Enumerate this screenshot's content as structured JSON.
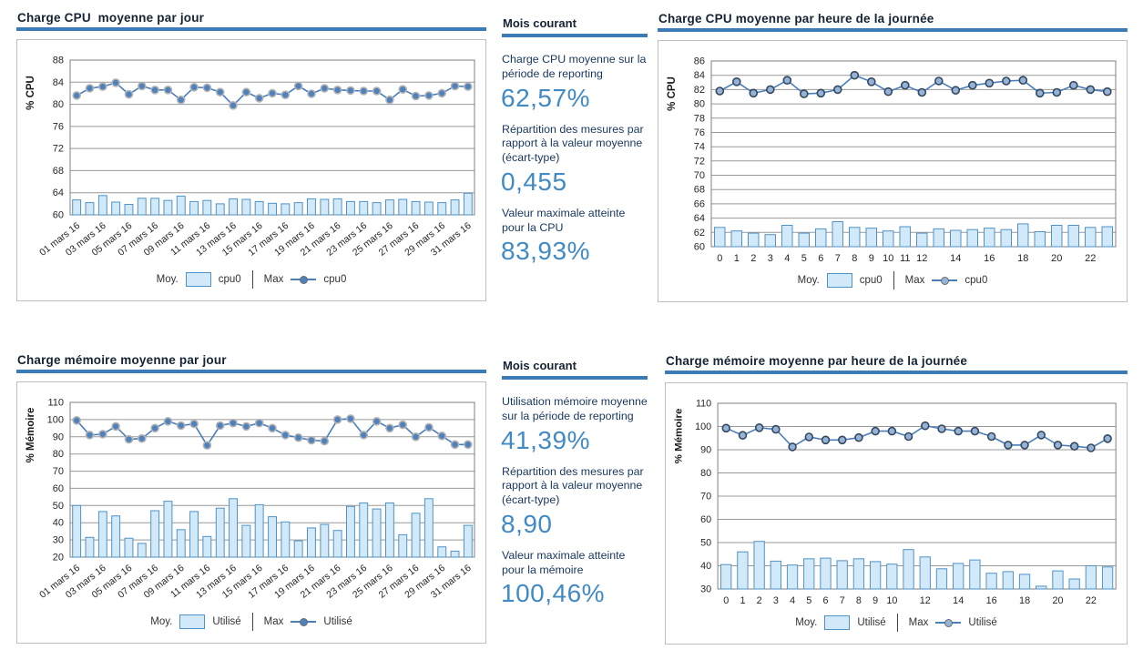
{
  "colors": {
    "accent_rule": "#3d7ab8",
    "bar_fill": "#d2e9f9",
    "bar_stroke": "#4f93c8",
    "line": "#4a7ebb",
    "grid": "#999999",
    "plot_border": "#7f7f7f",
    "frame_border": "#c0c0c0",
    "title_text": "#152333",
    "stat_label_text": "#17375d",
    "stat_value_text": "#418ac4",
    "tick_text": "#262626"
  },
  "stat_panels": [
    {
      "id": "cpu-stats",
      "title": "Mois courant",
      "stats": [
        {
          "label": "Charge CPU moyenne sur la période de reporting",
          "value": "62,57%"
        },
        {
          "label": "Répartition des mesures par rapport à la valeur moyenne (écart-type)",
          "value": "0,455"
        },
        {
          "label": "Valeur maximale atteinte pour la CPU",
          "value": "83,93%"
        }
      ]
    },
    {
      "id": "mem-stats",
      "title": "Mois courant",
      "stats": [
        {
          "label": "Utilisation mémoire moyenne sur la période de reporting",
          "value": "41,39%"
        },
        {
          "label": "Répartition des mesures par rapport à la valeur moyenne (écart-type)",
          "value": "8,90"
        },
        {
          "label": "Valeur maximale atteinte pour la mémoire",
          "value": "100,46%"
        }
      ]
    }
  ],
  "chart_data": [
    {
      "id": "cpu-day",
      "type": "bar+line",
      "title": "Charge CPU  moyenne par jour",
      "ylabel": "% CPU",
      "ymin": 60,
      "ymax": 88,
      "ystep": 4,
      "grid": true,
      "legend_position": "bottom",
      "rotate_xticks": true,
      "marker": {
        "fill": "#4f81bd",
        "stroke": "#b4b4b4"
      },
      "categories": [
        "01 mars 16",
        "02 mars 16",
        "03 mars 16",
        "04 mars 16",
        "05 mars 16",
        "06 mars 16",
        "07 mars 16",
        "08 mars 16",
        "09 mars 16",
        "10 mars 16",
        "11 mars 16",
        "12 mars 16",
        "13 mars 16",
        "14 mars 16",
        "15 mars 16",
        "16 mars 16",
        "17 mars 16",
        "18 mars 16",
        "19 mars 16",
        "20 mars 16",
        "21 mars 16",
        "22 mars 16",
        "23 mars 16",
        "24 mars 16",
        "25 mars 16",
        "26 mars 16",
        "27 mars 16",
        "28 mars 16",
        "29 mars 16",
        "30 mars 16",
        "31 mars 16"
      ],
      "xtick_indices": [
        0,
        2,
        4,
        6,
        8,
        10,
        12,
        14,
        16,
        18,
        20,
        22,
        24,
        26,
        28,
        30
      ],
      "legend": {
        "avg_label": "Moy.",
        "avg_series": "cpu0",
        "max_label": "Max",
        "max_series": "cpu0"
      },
      "series": [
        {
          "name": "Moy. cpu0",
          "type": "bar",
          "values": [
            62.7,
            62.2,
            63.5,
            62.3,
            61.9,
            63.0,
            63.0,
            62.6,
            63.4,
            62.4,
            62.6,
            62.0,
            62.9,
            62.8,
            62.4,
            62.1,
            62.0,
            62.2,
            62.9,
            62.8,
            62.9,
            62.4,
            62.4,
            62.2,
            62.7,
            62.8,
            62.4,
            62.3,
            62.2,
            62.7,
            63.9
          ]
        },
        {
          "name": "Max cpu0",
          "type": "line",
          "values": [
            81.6,
            82.9,
            83.2,
            83.9,
            81.8,
            83.3,
            82.6,
            82.6,
            80.8,
            83.1,
            83.0,
            82.2,
            79.8,
            82.2,
            81.1,
            82.0,
            81.7,
            83.3,
            81.9,
            82.9,
            82.6,
            82.5,
            82.4,
            82.4,
            80.8,
            82.7,
            81.5,
            81.6,
            82.0,
            83.3,
            83.2
          ]
        }
      ]
    },
    {
      "id": "cpu-hour",
      "type": "bar+line",
      "title": "Charge CPU moyenne par heure de la journée",
      "ylabel": "% CPU",
      "ymin": 60,
      "ymax": 86,
      "ystep": 2,
      "grid": true,
      "legend_position": "bottom",
      "rotate_xticks": false,
      "marker": {
        "fill": "#95b3d7",
        "stroke": "#33475e"
      },
      "categories": [
        "0",
        "1",
        "2",
        "3",
        "4",
        "5",
        "6",
        "7",
        "8",
        "9",
        "10",
        "11",
        "12",
        "13",
        "14",
        "15",
        "16",
        "17",
        "18",
        "19",
        "20",
        "21",
        "22",
        "23"
      ],
      "xtick_indices": [
        0,
        1,
        2,
        3,
        4,
        5,
        6,
        7,
        8,
        9,
        10,
        11,
        12,
        14,
        16,
        18,
        20,
        22
      ],
      "legend": {
        "avg_label": "Moy.",
        "avg_series": "cpu0",
        "max_label": "Max",
        "max_series": "cpu0"
      },
      "series": [
        {
          "name": "Moy. cpu0",
          "type": "bar",
          "values": [
            62.7,
            62.2,
            61.9,
            61.7,
            63.0,
            61.9,
            62.5,
            63.5,
            62.7,
            62.6,
            62.2,
            62.8,
            61.9,
            62.5,
            62.3,
            62.4,
            62.6,
            62.4,
            63.2,
            62.1,
            63.0,
            63.0,
            62.7,
            62.8
          ]
        },
        {
          "name": "Max cpu0",
          "type": "line",
          "values": [
            81.8,
            83.1,
            81.5,
            82.0,
            83.3,
            81.4,
            81.5,
            82.0,
            84.0,
            83.1,
            81.7,
            82.6,
            81.6,
            83.2,
            81.9,
            82.6,
            82.9,
            83.2,
            83.3,
            81.5,
            81.6,
            82.6,
            82.0,
            81.7
          ]
        }
      ]
    },
    {
      "id": "mem-day",
      "type": "bar+line",
      "title": "Charge mémoire moyenne par jour",
      "ylabel": "% Mémoire",
      "ymin": 20,
      "ymax": 110,
      "ystep": 10,
      "grid": true,
      "legend_position": "bottom",
      "rotate_xticks": true,
      "marker": {
        "fill": "#4f81bd",
        "stroke": "#b4b4b4"
      },
      "categories": [
        "01 mars 16",
        "02 mars 16",
        "03 mars 16",
        "04 mars 16",
        "05 mars 16",
        "06 mars 16",
        "07 mars 16",
        "08 mars 16",
        "09 mars 16",
        "10 mars 16",
        "11 mars 16",
        "12 mars 16",
        "13 mars 16",
        "14 mars 16",
        "15 mars 16",
        "16 mars 16",
        "17 mars 16",
        "18 mars 16",
        "19 mars 16",
        "20 mars 16",
        "21 mars 16",
        "22 mars 16",
        "23 mars 16",
        "24 mars 16",
        "25 mars 16",
        "26 mars 16",
        "27 mars 16",
        "28 mars 16",
        "29 mars 16",
        "30 mars 16",
        "31 mars 16"
      ],
      "xtick_indices": [
        0,
        2,
        4,
        6,
        8,
        10,
        12,
        14,
        16,
        18,
        20,
        22,
        24,
        26,
        28,
        30
      ],
      "legend": {
        "avg_label": "Moy.",
        "avg_series": "Utilisé",
        "max_label": "Max",
        "max_series": "Utilisé"
      },
      "series": [
        {
          "name": "Moy. Utilisé",
          "type": "bar",
          "values": [
            50.0,
            31.5,
            46.5,
            44.0,
            31.0,
            28.0,
            47.0,
            52.5,
            36.0,
            46.5,
            32.0,
            48.5,
            54.0,
            38.5,
            50.5,
            43.5,
            40.5,
            29.5,
            37.0,
            39.0,
            35.5,
            49.5,
            51.5,
            48.0,
            51.5,
            33.0,
            45.5,
            54.0,
            26.0,
            23.5,
            38.5
          ]
        },
        {
          "name": "Max Utilisé",
          "type": "line",
          "values": [
            99.5,
            91.0,
            91.5,
            96.0,
            88.5,
            89.0,
            95.0,
            99.0,
            96.5,
            97.5,
            85.0,
            96.5,
            98.0,
            96.0,
            98.0,
            95.0,
            91.0,
            89.5,
            88.0,
            87.5,
            100.0,
            100.5,
            91.0,
            99.0,
            95.0,
            97.0,
            90.0,
            95.5,
            90.5,
            85.5,
            85.5
          ]
        }
      ]
    },
    {
      "id": "mem-hour",
      "type": "bar+line",
      "title": "Charge mémoire moyenne par heure de la journée",
      "ylabel": "% Mémoire",
      "ymin": 30,
      "ymax": 110,
      "ystep": 10,
      "grid": true,
      "legend_position": "bottom",
      "rotate_xticks": false,
      "marker": {
        "fill": "#95b3d7",
        "stroke": "#33475e"
      },
      "categories": [
        "0",
        "1",
        "2",
        "3",
        "4",
        "5",
        "6",
        "7",
        "8",
        "9",
        "10",
        "11",
        "12",
        "13",
        "14",
        "15",
        "16",
        "17",
        "18",
        "19",
        "20",
        "21",
        "22",
        "23"
      ],
      "xtick_indices": [
        0,
        1,
        2,
        3,
        4,
        5,
        6,
        7,
        8,
        9,
        10,
        12,
        14,
        16,
        18,
        20,
        22
      ],
      "legend": {
        "avg_label": "Moy.",
        "avg_series": "Utilisé",
        "max_label": "Max",
        "max_series": "Utilisé"
      },
      "series": [
        {
          "name": "Moy. Utilisé",
          "type": "bar",
          "values": [
            40.5,
            46.0,
            50.5,
            42.0,
            40.3,
            43.0,
            43.3,
            42.2,
            43.0,
            41.8,
            40.7,
            47.0,
            43.8,
            38.7,
            41.0,
            42.5,
            36.8,
            37.5,
            36.3,
            31.2,
            37.8,
            34.3,
            40.0,
            39.5
          ]
        },
        {
          "name": "Max Utilisé",
          "type": "line",
          "values": [
            99.3,
            96.2,
            99.5,
            98.8,
            91.2,
            95.5,
            94.2,
            94.2,
            95.2,
            98.0,
            98.0,
            95.7,
            100.3,
            99.0,
            98.0,
            98.0,
            95.7,
            92.0,
            92.0,
            96.3,
            92.0,
            91.5,
            90.8,
            94.8
          ]
        }
      ]
    }
  ]
}
